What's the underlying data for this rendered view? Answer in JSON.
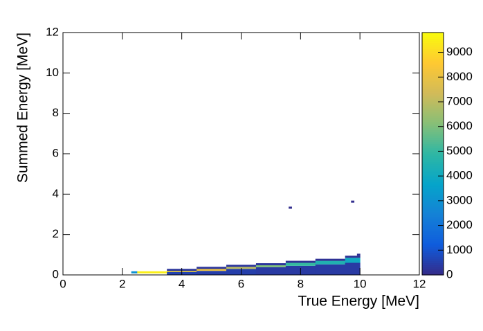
{
  "chart_data": {
    "type": "heatmap",
    "xlabel": "True Energy [MeV]",
    "ylabel": "Summed Energy [MeV]",
    "xlim": [
      0,
      12
    ],
    "ylim": [
      0,
      12
    ],
    "zlim": [
      0,
      9800
    ],
    "xticks": [
      0,
      2,
      4,
      6,
      8,
      10,
      12
    ],
    "yticks": [
      0,
      2,
      4,
      6,
      8,
      10,
      12
    ],
    "zticks": [
      0,
      1000,
      2000,
      3000,
      4000,
      5000,
      6000,
      7000,
      8000,
      9000
    ],
    "colormap": [
      "#352a87",
      "#0f5cdd",
      "#1481d6",
      "#06a4ca",
      "#2eb7a4",
      "#87bf77",
      "#d1bb59",
      "#fec832",
      "#f9fb0e"
    ],
    "cells": [
      {
        "x": [
          2.3,
          2.5
        ],
        "y": [
          0.1,
          0.18
        ],
        "value": 3000
      },
      {
        "x": [
          2.5,
          3.5
        ],
        "y": [
          0.1,
          0.18
        ],
        "value": 9500
      },
      {
        "x": [
          3.5,
          4.5
        ],
        "y": [
          0,
          0.15
        ],
        "value": 600
      },
      {
        "x": [
          3.5,
          4.5
        ],
        "y": [
          0.15,
          0.25
        ],
        "value": 9000
      },
      {
        "x": [
          3.5,
          4.5
        ],
        "y": [
          0.25,
          0.3
        ],
        "value": 300
      },
      {
        "x": [
          4.5,
          5.5
        ],
        "y": [
          0,
          0.2
        ],
        "value": 500
      },
      {
        "x": [
          4.5,
          5.5
        ],
        "y": [
          0.2,
          0.32
        ],
        "value": 8000
      },
      {
        "x": [
          4.5,
          5.5
        ],
        "y": [
          0.32,
          0.4
        ],
        "value": 300
      },
      {
        "x": [
          5.5,
          6.5
        ],
        "y": [
          0,
          0.3
        ],
        "value": 500
      },
      {
        "x": [
          5.5,
          6.5
        ],
        "y": [
          0.3,
          0.42
        ],
        "value": 7000
      },
      {
        "x": [
          5.5,
          6.5
        ],
        "y": [
          0.42,
          0.5
        ],
        "value": 300
      },
      {
        "x": [
          6.5,
          7.5
        ],
        "y": [
          0,
          0.38
        ],
        "value": 400
      },
      {
        "x": [
          6.5,
          7.5
        ],
        "y": [
          0.38,
          0.5
        ],
        "value": 6000
      },
      {
        "x": [
          6.5,
          7.5
        ],
        "y": [
          0.5,
          0.58
        ],
        "value": 300
      },
      {
        "x": [
          7.5,
          8.5
        ],
        "y": [
          0,
          0.45
        ],
        "value": 400
      },
      {
        "x": [
          7.5,
          8.5
        ],
        "y": [
          0.45,
          0.6
        ],
        "value": 5000
      },
      {
        "x": [
          7.5,
          8.5
        ],
        "y": [
          0.6,
          0.7
        ],
        "value": 200
      },
      {
        "x": [
          8.5,
          9.5
        ],
        "y": [
          0,
          0.52
        ],
        "value": 400
      },
      {
        "x": [
          8.5,
          9.5
        ],
        "y": [
          0.52,
          0.7
        ],
        "value": 4500
      },
      {
        "x": [
          8.5,
          9.5
        ],
        "y": [
          0.7,
          0.8
        ],
        "value": 200
      },
      {
        "x": [
          9.5,
          10
        ],
        "y": [
          0,
          0.6
        ],
        "value": 400
      },
      {
        "x": [
          9.5,
          10
        ],
        "y": [
          0.6,
          0.85
        ],
        "value": 4000
      },
      {
        "x": [
          9.5,
          10
        ],
        "y": [
          0.85,
          0.95
        ],
        "value": 200
      },
      {
        "x": [
          9.9,
          10
        ],
        "y": [
          0.95,
          1.05
        ],
        "value": 200
      },
      {
        "x": [
          7.6,
          7.7
        ],
        "y": [
          3.3,
          3.38
        ],
        "value": 100
      },
      {
        "x": [
          9.7,
          9.8
        ],
        "y": [
          3.6,
          3.68
        ],
        "value": 100
      }
    ]
  }
}
